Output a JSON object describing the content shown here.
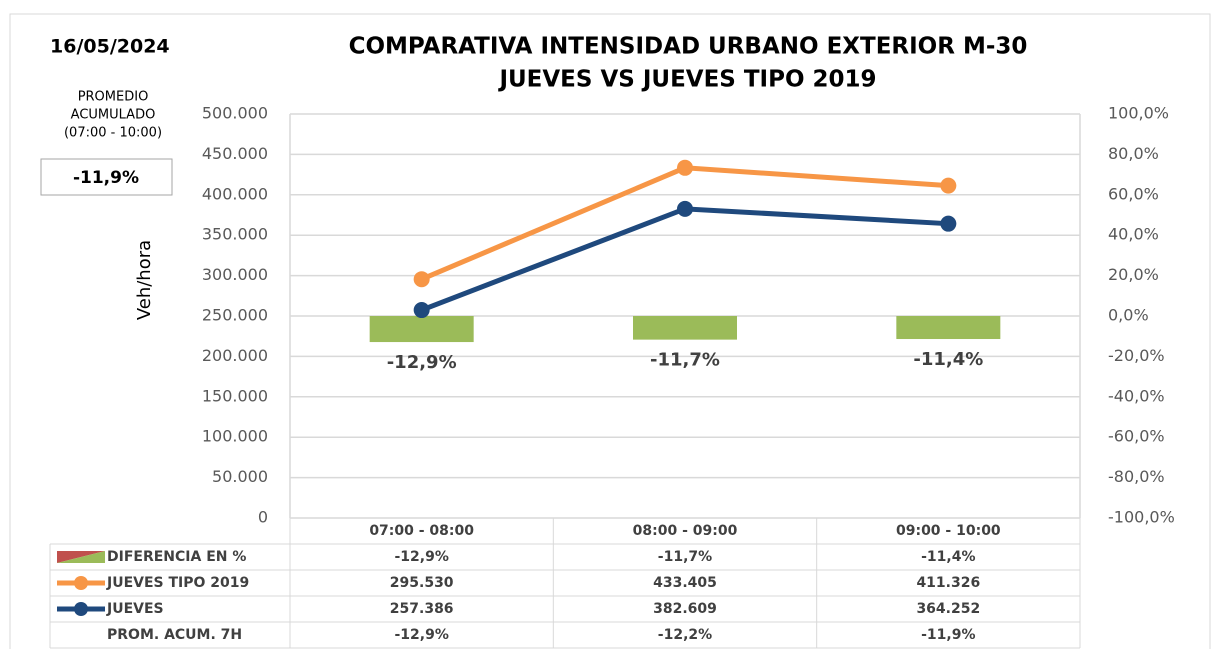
{
  "chart_data": {
    "type": "combo",
    "title": "COMPARATIVA INTENSIDAD URBANO EXTERIOR M-30",
    "subtitle": "JUEVES VS JUEVES TIPO 2019",
    "date": "16/05/2024",
    "ylabel": "Veh/hora",
    "summary": {
      "label_lines": [
        "PROMEDIO",
        "ACUMULADO",
        "(07:00 - 10:00)"
      ],
      "value_label": "-11,9%"
    },
    "categories": [
      "07:00 - 08:00",
      "08:00 - 09:00",
      "09:00 - 10:00"
    ],
    "series": [
      {
        "name": "DIFERENCIA EN %",
        "type": "bar",
        "axis": "y2",
        "color": "#9bbb59",
        "values": [
          -12.9,
          -11.7,
          -11.4
        ],
        "value_labels": [
          "-12,9%",
          "-11,7%",
          "-11,4%"
        ]
      },
      {
        "name": "JUEVES TIPO 2019",
        "type": "line",
        "color": "#f79646",
        "values": [
          295530,
          433405,
          411326
        ],
        "value_labels": [
          "295.530",
          "433.405",
          "411.326"
        ]
      },
      {
        "name": "JUEVES",
        "type": "line",
        "color": "#1f497d",
        "values": [
          257386,
          382609,
          364252
        ],
        "value_labels": [
          "257.386",
          "382.609",
          "364.252"
        ]
      }
    ],
    "table_rows": [
      {
        "name": "PROM. ACUM. 7H",
        "cells": [
          "-12,9%",
          "-12,2%",
          "-11,9%"
        ]
      }
    ],
    "ylim": [
      0,
      500000
    ],
    "yticks": [
      0,
      {
        "value": 50000,
        "label": "50.000"
      },
      {
        "value": 100000,
        "label": "100.000"
      },
      {
        "value": 150000,
        "label": "150.000"
      },
      {
        "value": 200000,
        "label": "200.000"
      },
      {
        "value": 250000,
        "label": "250.000"
      },
      {
        "value": 300000,
        "label": "300.000"
      },
      {
        "value": 350000,
        "label": "350.000"
      },
      {
        "value": 400000,
        "label": "400.000"
      },
      {
        "value": 450000,
        "label": "450.000"
      },
      {
        "value": 500000,
        "label": "500.000"
      }
    ],
    "y2lim": [
      -100,
      100
    ],
    "y2ticks": [
      {
        "value": -100,
        "label": "-100,0%"
      },
      {
        "value": -80,
        "label": "-80,0%"
      },
      {
        "value": -60,
        "label": "-60,0%"
      },
      {
        "value": -40,
        "label": "-40,0%"
      },
      {
        "value": -20,
        "label": "-20,0%"
      },
      {
        "value": 0,
        "label": "0,0%"
      },
      {
        "value": 20,
        "label": "20,0%"
      },
      {
        "value": 40,
        "label": "40,0%"
      },
      {
        "value": 60,
        "label": "60,0%"
      },
      {
        "value": 80,
        "label": "80,0%"
      },
      {
        "value": 100,
        "label": "100,0%"
      }
    ],
    "grid": true
  }
}
